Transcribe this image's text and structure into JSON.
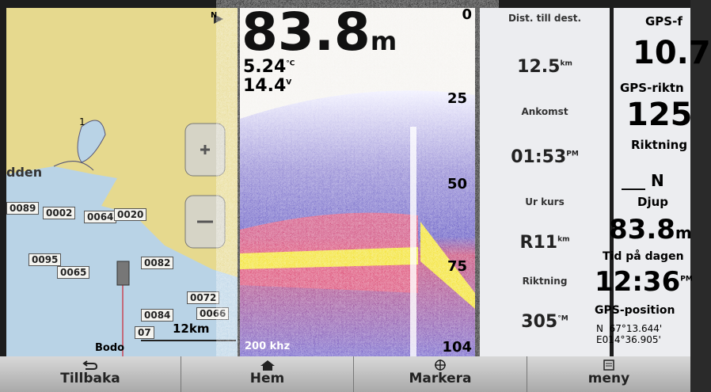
{
  "map": {
    "compass": "N",
    "place_top": "1",
    "place_left": "dden",
    "place_bottom": "Bodo",
    "scale": "12km",
    "waypoints": [
      "0089",
      "0002",
      "0064",
      "0020",
      "0095",
      "0065",
      "0082",
      "0072",
      "0084",
      "0066",
      "07"
    ]
  },
  "sonar": {
    "depth": "83.8",
    "depth_unit": "m",
    "temp": "5.24",
    "temp_unit": "°C",
    "voltage": "14.4",
    "voltage_unit": "V",
    "scale": [
      "0",
      "25",
      "50",
      "75",
      "104"
    ],
    "frequency": "200 khz"
  },
  "data_panel": {
    "fields": [
      {
        "label": "Dist. till dest.",
        "value": "12.5",
        "unit": "km"
      },
      {
        "label": "Ankomst",
        "value": "01:53",
        "unit": "PM"
      },
      {
        "label": "Ur kurs",
        "value": "R11",
        "unit": "km"
      },
      {
        "label": "Riktning",
        "value": "305",
        "unit": "°M"
      }
    ]
  },
  "gps_panel": {
    "fields": [
      {
        "label": "GPS-f",
        "value": "10.7"
      },
      {
        "label": "GPS-riktn",
        "value": "125"
      },
      {
        "label": "Riktning",
        "value": "___ N"
      },
      {
        "label": "Djup",
        "value": "83.8",
        "unit": "m"
      },
      {
        "label": "Tid på dagen",
        "value": "12:36",
        "unit": "PM"
      }
    ],
    "position_label": "GPS-position",
    "lat": "N  67°13.644'",
    "lon": "E014°36.905'"
  },
  "menu": {
    "items": [
      "Tillbaka",
      "Hem",
      "Markera",
      "meny"
    ]
  }
}
